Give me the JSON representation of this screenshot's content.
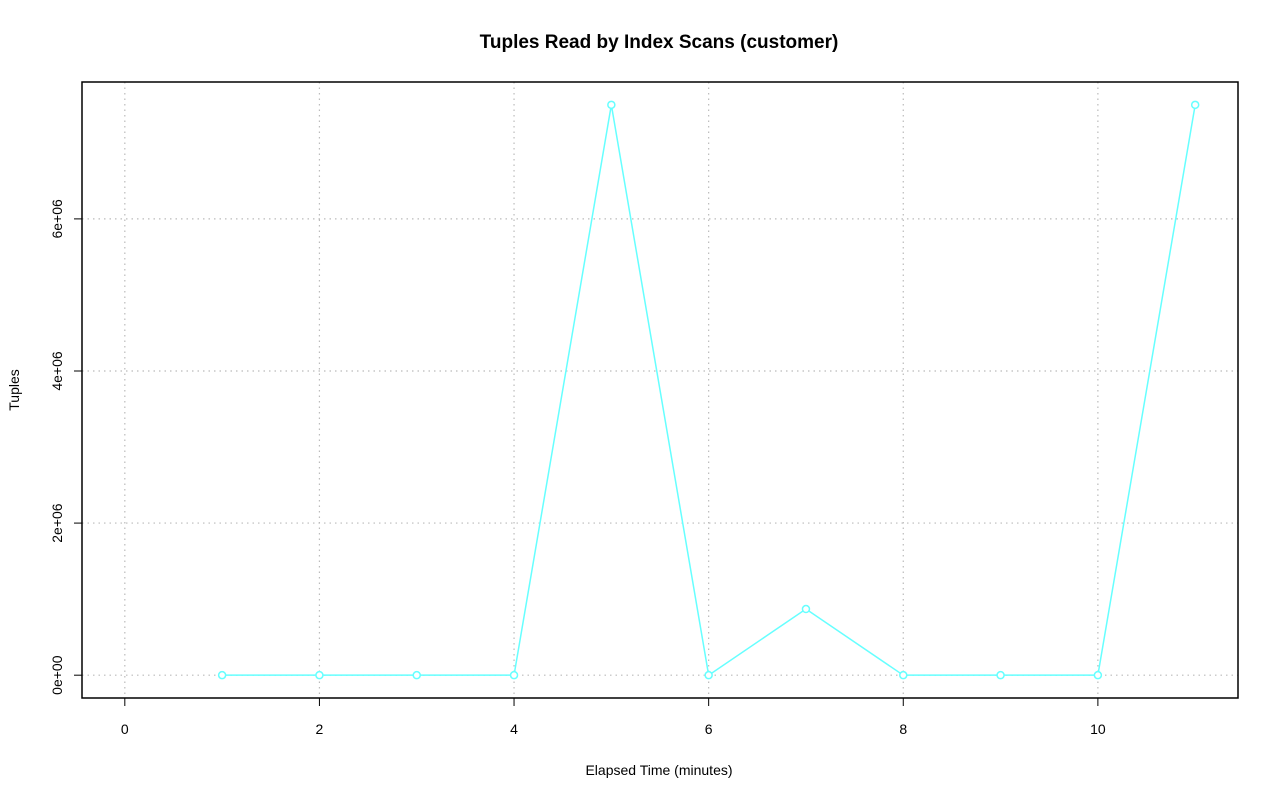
{
  "chart_data": {
    "type": "line",
    "title": "Tuples Read by Index Scans (customer)",
    "x_label": "Elapsed Time (minutes)",
    "y_label": "Tuples",
    "x": [
      1,
      2,
      3,
      4,
      5,
      6,
      7,
      8,
      9,
      10,
      11
    ],
    "series": [
      {
        "color": "#66ffff",
        "values": [
          0,
          0,
          0,
          0,
          7500000,
          0,
          870000,
          0,
          0,
          0,
          7500000
        ]
      }
    ],
    "xlim": [
      -0.44,
      11.44
    ],
    "ylim": [
      -300000,
      7800000
    ],
    "xticks": [
      0,
      2,
      4,
      6,
      8,
      10
    ],
    "yticks": [
      {
        "value": 0,
        "label": "0e+00"
      },
      {
        "value": 2000000,
        "label": "2e+06"
      },
      {
        "value": 4000000,
        "label": "4e+06"
      },
      {
        "value": 6000000,
        "label": "6e+06"
      }
    ],
    "grid": true
  }
}
